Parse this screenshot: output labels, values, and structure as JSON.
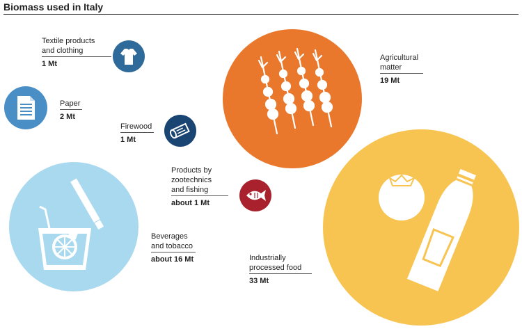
{
  "title": "Biomass used in Italy",
  "colors": {
    "dark_blue": "#2e6a9a",
    "mid_blue": "#4a8ec6",
    "navy": "#1a4472",
    "red": "#a8212c",
    "orange": "#e9782c",
    "yellow": "#f8c451",
    "light_blue": "#a9d9ef"
  },
  "items": [
    {
      "name": "Textile products and clothing",
      "line1": "Textile products",
      "line2": "and clothing",
      "value": "1 Mt",
      "icon": "shirt-icon"
    },
    {
      "name": "Paper",
      "line1": "Paper",
      "value": "2 Mt",
      "icon": "document-icon"
    },
    {
      "name": "Firewood",
      "line1": "Firewood",
      "value": "1 Mt",
      "icon": "log-icon"
    },
    {
      "name": "Agricultural matter",
      "line1": "Agricultural",
      "line2": "matter",
      "value": "19 Mt",
      "icon": "wheat-icon"
    },
    {
      "name": "Products by zootechnics and fishing",
      "line1": "Products by",
      "line2": "zootechnics",
      "line3": "and fishing",
      "value": "about 1 Mt",
      "icon": "fish-icon"
    },
    {
      "name": "Beverages and tobacco",
      "line1": "Beverages",
      "line2": "and tobacco",
      "value": "about 16 Mt",
      "icon": "drink-cigarette-icon"
    },
    {
      "name": "Industrially processed food",
      "line1": "Industrially",
      "line2": "processed food",
      "value": "33 Mt",
      "icon": "tomato-ketchup-icon"
    }
  ]
}
